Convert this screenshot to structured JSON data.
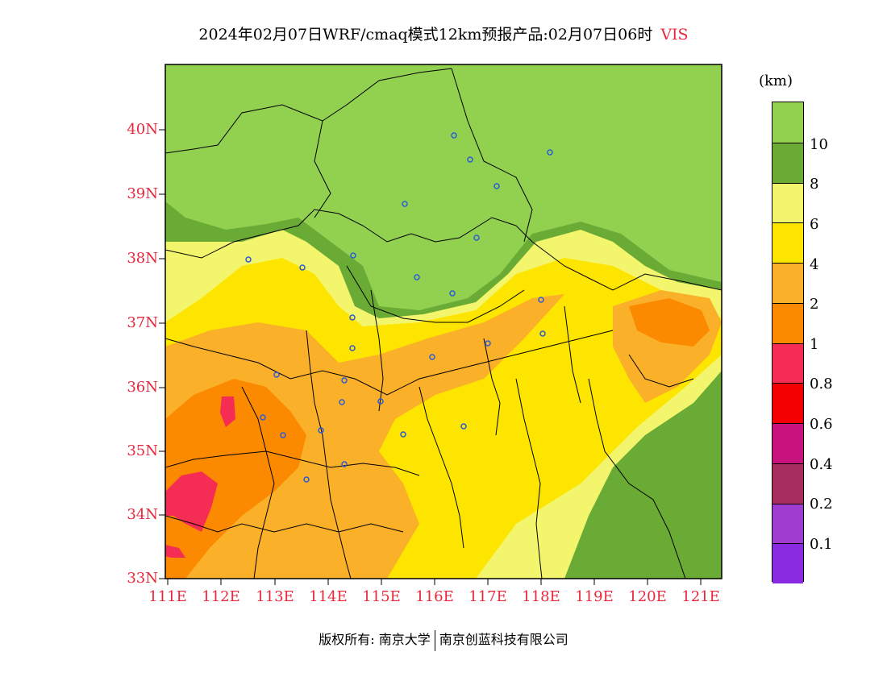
{
  "title": {
    "main": "2024年02月07日WRF/cmaq模式12km预报产品:02月07日06时",
    "variable": "VIS"
  },
  "map": {
    "lat_labels": [
      "40N",
      "39N",
      "38N",
      "37N",
      "36N",
      "35N",
      "34N",
      "33N"
    ],
    "lon_labels": [
      "111E",
      "112E",
      "113E",
      "114E",
      "115E",
      "116E",
      "117E",
      "118E",
      "119E",
      "120E",
      "121E"
    ]
  },
  "colorbar": {
    "unit": "(km)",
    "labels": [
      "10",
      "8",
      "6",
      "4",
      "2",
      "1",
      "0.8",
      "0.6",
      "0.4",
      "0.2",
      "0.1"
    ],
    "colors": [
      "#92d050",
      "#6aab35",
      "#f3f56c",
      "#fde500",
      "#fbb02a",
      "#fb8a00",
      "#f52d55",
      "#f50000",
      "#c8137e",
      "#a62d5e",
      "#9e3dcf",
      "#8a2be2"
    ]
  },
  "footer": {
    "left": "版权所有: 南京大学",
    "right": "南京创蓝科技有限公司"
  }
}
